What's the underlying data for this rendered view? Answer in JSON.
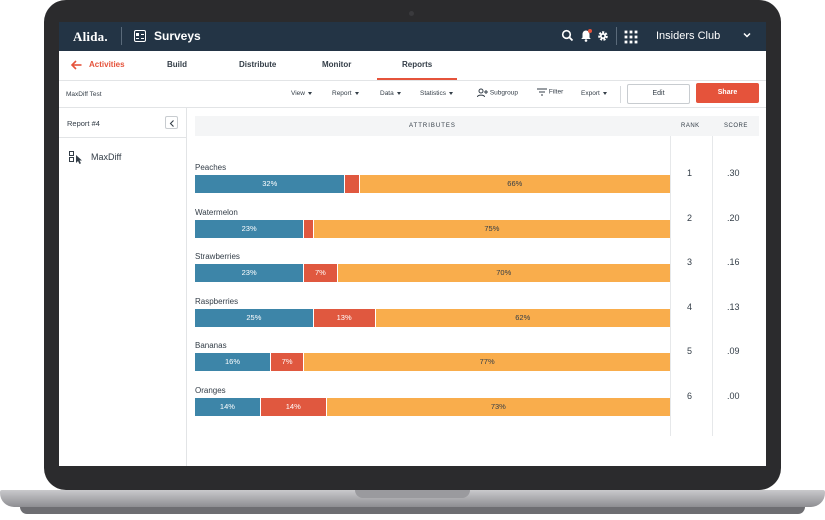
{
  "header": {
    "logo": "Alida.",
    "app_title": "Surveys",
    "org_name": "Insiders Club",
    "icons": [
      "search-icon",
      "bell-icon",
      "gear-icon",
      "apps-grid-icon",
      "chevron-down-icon"
    ]
  },
  "nav": {
    "tabs": [
      {
        "label": "Activities"
      },
      {
        "label": "Build"
      },
      {
        "label": "Distribute"
      },
      {
        "label": "Monitor"
      },
      {
        "label": "Reports"
      }
    ]
  },
  "toolbar": {
    "report_name": "MaxDiff Test",
    "view": "View",
    "report": "Report",
    "data": "Data",
    "statistics": "Statistics",
    "subgroup": "Subgroup",
    "filter": "Filter",
    "export": "Export",
    "edit": "Edit",
    "share": "Share"
  },
  "sidebar": {
    "title": "Report #4",
    "item": "MaxDiff"
  },
  "table": {
    "headers": {
      "attributes": "ATTRIBUTES",
      "rank": "RANK",
      "score": "SCORE"
    },
    "rows": [
      {
        "name": "Peaches",
        "best": 32,
        "worst": 3,
        "neutral": 66,
        "best_label": "32%",
        "worst_label": "",
        "neutral_label": "66%",
        "rank": "1",
        "score": ".30"
      },
      {
        "name": "Watermelon",
        "best": 23,
        "worst": 2,
        "neutral": 75,
        "best_label": "23%",
        "worst_label": "",
        "neutral_label": "75%",
        "rank": "2",
        "score": ".20"
      },
      {
        "name": "Strawberries",
        "best": 23,
        "worst": 7,
        "neutral": 70,
        "best_label": "23%",
        "worst_label": "7%",
        "neutral_label": "70%",
        "rank": "3",
        "score": ".16"
      },
      {
        "name": "Raspberries",
        "best": 25,
        "worst": 13,
        "neutral": 62,
        "best_label": "25%",
        "worst_label": "13%",
        "neutral_label": "62%",
        "rank": "4",
        "score": ".13"
      },
      {
        "name": "Bananas",
        "best": 16,
        "worst": 7,
        "neutral": 77,
        "best_label": "16%",
        "worst_label": "7%",
        "neutral_label": "77%",
        "rank": "5",
        "score": ".09"
      },
      {
        "name": "Oranges",
        "best": 14,
        "worst": 14,
        "neutral": 73,
        "best_label": "14%",
        "worst_label": "14%",
        "neutral_label": "73%",
        "rank": "6",
        "score": ".00"
      }
    ]
  },
  "colors": {
    "best": "#3d85a8",
    "worst": "#e0583f",
    "neutral": "#f9ad4c",
    "accent": "#e5533b",
    "topbar": "#233445"
  }
}
